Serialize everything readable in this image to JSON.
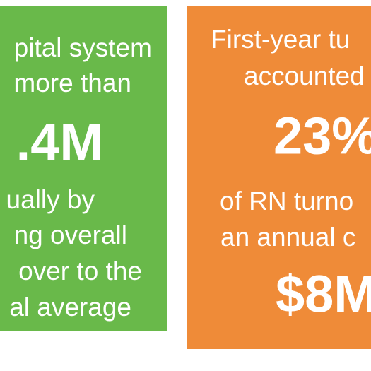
{
  "left_panel": {
    "lines": [
      "pital system",
      "more than",
      ".4M",
      "ually by",
      "ng overall",
      "over to the",
      "al average"
    ]
  },
  "right_panel": {
    "lines": [
      "First-year tu",
      "accounted",
      "23%",
      "of RN turno",
      "an annual c",
      "$8M"
    ]
  }
}
